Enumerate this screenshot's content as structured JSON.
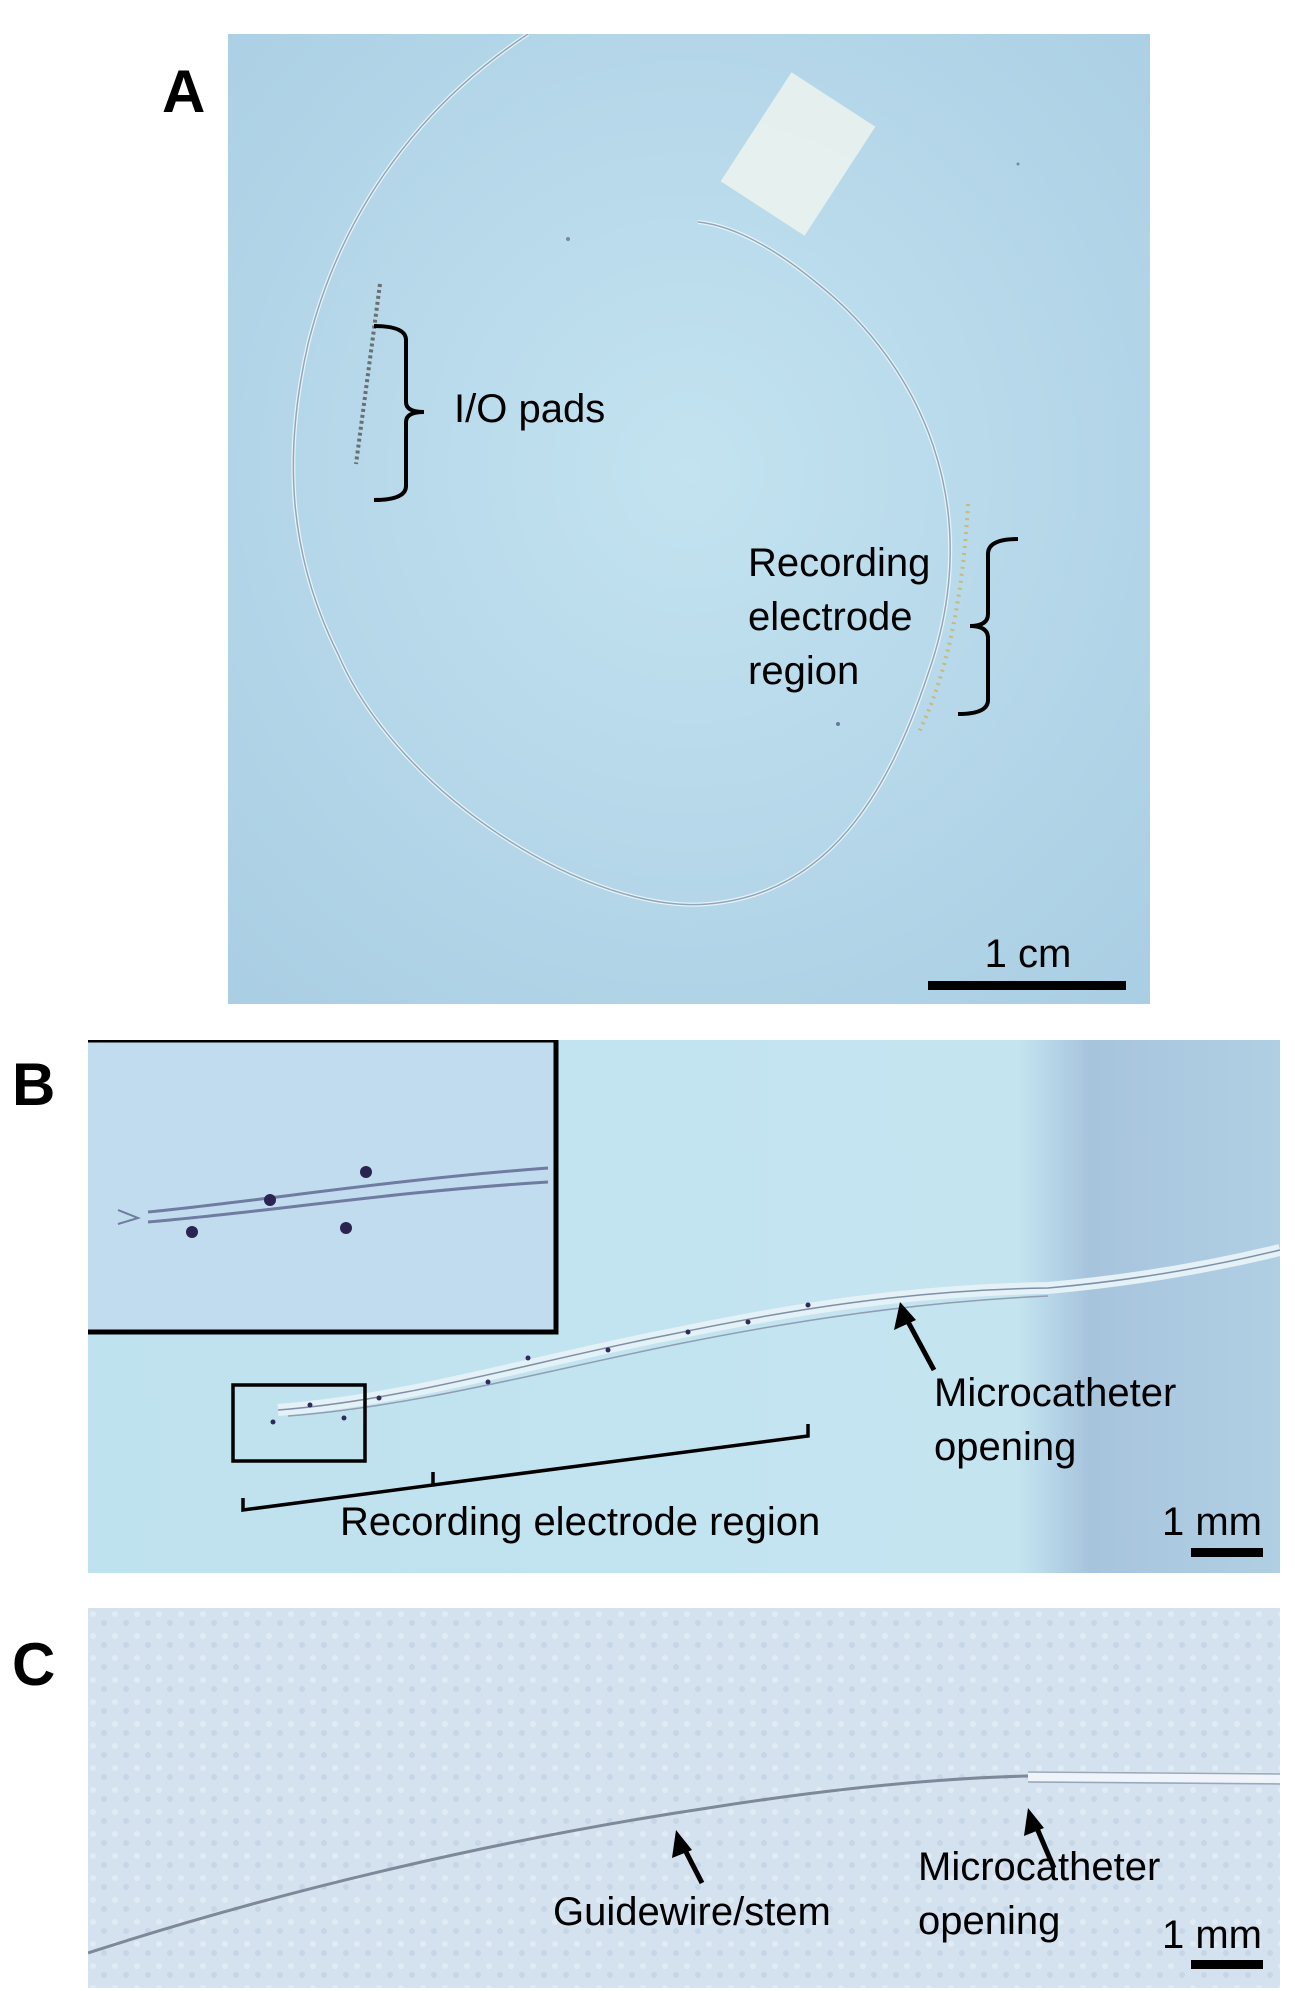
{
  "panels": {
    "a": {
      "letter": "A",
      "io_label": "I/O pads",
      "recording_label": [
        "Recording",
        "electrode",
        "region"
      ],
      "scale": "1 cm"
    },
    "b": {
      "letter": "B",
      "recording_label": "Recording electrode region",
      "microcatheter_label": [
        "Microcatheter",
        "opening"
      ],
      "scale": "1 mm"
    },
    "c": {
      "letter": "C",
      "guidewire_label": "Guidewire/stem",
      "microcatheter_label": [
        "Microcatheter",
        "opening"
      ],
      "scale": "1 mm"
    }
  },
  "colors": {
    "photo_background_a": "#b7d8e8",
    "photo_background_b": "#bfe1ee",
    "photo_background_c": "#d3e1ee",
    "annotation": "#000000"
  }
}
